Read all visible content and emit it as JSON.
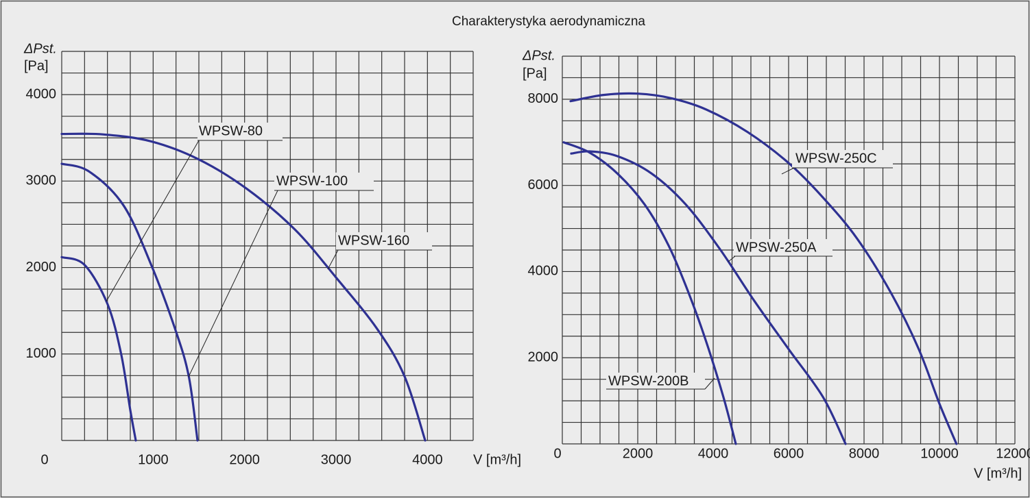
{
  "title": "Charakterystyka aerodynamiczna",
  "chart_data": [
    {
      "type": "line",
      "xlabel": "V [m³/h]",
      "ylabel": [
        "ΔPst.",
        "[Pa]"
      ],
      "xlim": [
        0,
        4500
      ],
      "ylim": [
        0,
        4500
      ],
      "xticks": [
        0,
        1000,
        2000,
        3000,
        4000
      ],
      "yticks": [
        1000,
        2000,
        3000,
        4000
      ],
      "grid": true,
      "xgrid": [
        0,
        250,
        500,
        750,
        1000,
        1250,
        1500,
        1750,
        2000,
        2250,
        2500,
        2750,
        3000,
        3250,
        3500,
        3750,
        4000,
        4250,
        4500
      ],
      "ygrid": [
        0,
        250,
        500,
        750,
        1000,
        1250,
        1500,
        1750,
        2000,
        2250,
        2500,
        2750,
        3000,
        3250,
        3500,
        3750,
        4000,
        4250,
        4500
      ],
      "series": [
        {
          "name": "WPSW-80",
          "color": "#2e3192",
          "x": [
            0,
            250,
            500,
            650,
            750,
            810
          ],
          "values": [
            2120,
            2030,
            1580,
            1000,
            350,
            0
          ]
        },
        {
          "name": "WPSW-100",
          "color": "#2e3192",
          "x": [
            0,
            300,
            675,
            975,
            1240,
            1390,
            1485
          ],
          "values": [
            3200,
            3110,
            2720,
            2040,
            1290,
            740,
            0
          ]
        },
        {
          "name": "WPSW-160",
          "color": "#2e3192",
          "x": [
            0,
            450,
            975,
            1500,
            2025,
            2550,
            3000,
            3450,
            3750,
            3975
          ],
          "values": [
            3545,
            3540,
            3460,
            3250,
            2910,
            2440,
            1885,
            1290,
            740,
            0
          ]
        }
      ]
    },
    {
      "type": "line",
      "xlabel": "V [m³/h]",
      "ylabel": [
        "ΔPst.",
        "[Pa]"
      ],
      "xlim": [
        0,
        12000
      ],
      "ylim": [
        0,
        9000
      ],
      "xticks": [
        0,
        2000,
        4000,
        6000,
        8000,
        10000,
        12000
      ],
      "yticks": [
        2000,
        4000,
        6000,
        8000
      ],
      "grid": true,
      "xgrid": [
        0,
        500,
        1000,
        1500,
        2000,
        2500,
        3000,
        3500,
        4000,
        4500,
        5000,
        5500,
        6000,
        6500,
        7000,
        7500,
        8000,
        8500,
        9000,
        9500,
        10000,
        10500,
        11000,
        11500,
        12000
      ],
      "ygrid": [
        0,
        500,
        1000,
        1500,
        2000,
        2500,
        3000,
        3500,
        4000,
        4500,
        5000,
        5500,
        6000,
        6500,
        7000,
        7500,
        8000,
        8500,
        9000
      ],
      "series": [
        {
          "name": "WPSW-250C",
          "color": "#2e3192",
          "x": [
            218,
            1090,
            2000,
            2910,
            3820,
            4910,
            6000,
            6910,
            7820,
            8730,
            9450,
            10000,
            10450
          ],
          "values": [
            7955,
            8100,
            8130,
            8020,
            7760,
            7240,
            6520,
            5720,
            4760,
            3480,
            2200,
            930,
            0
          ]
        },
        {
          "name": "WPSW-250A",
          "color": "#2e3192",
          "x": [
            236,
            727,
            1455,
            2360,
            3270,
            4180,
            5090,
            6000,
            6910,
            7510
          ],
          "values": [
            6740,
            6790,
            6680,
            6280,
            5560,
            4520,
            3320,
            2200,
            1090,
            0
          ]
        },
        {
          "name": "WPSW-200B",
          "color": "#2e3192",
          "x": [
            36,
            727,
            1455,
            2180,
            2820,
            3360,
            3820,
            4270,
            4600
          ],
          "values": [
            7000,
            6760,
            6280,
            5560,
            4600,
            3480,
            2360,
            1090,
            0
          ]
        }
      ]
    }
  ]
}
